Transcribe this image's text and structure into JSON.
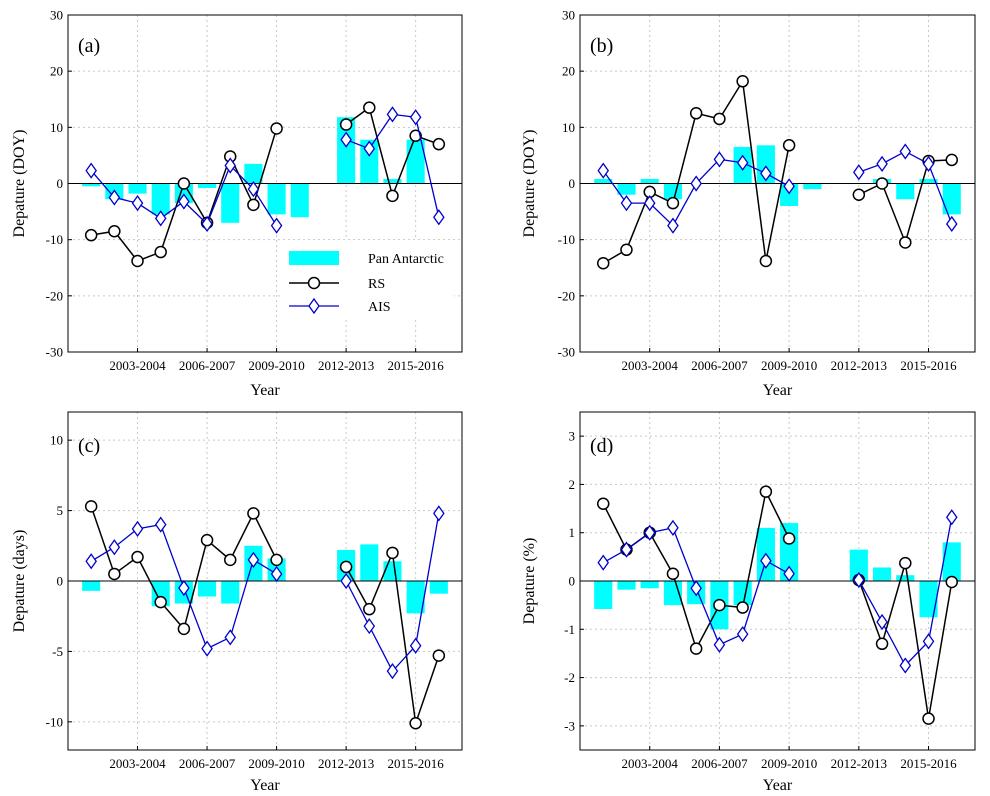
{
  "colors": {
    "bar": "#00ffff",
    "rs": "#000000",
    "ais": "#0000cd",
    "grid": "#c8c8c8"
  },
  "legend": {
    "entries": [
      "Pan Antarctic",
      "RS",
      "AIS"
    ]
  },
  "chart_data": [
    {
      "type": "bar",
      "panel_label": "(a)",
      "xlabel": "Year",
      "ylabel": "Depature (DOY)",
      "categories": [
        "2001-2002",
        "2002-2003",
        "2003-2004",
        "2004-2005",
        "2005-2006",
        "2006-2007",
        "2007-2008",
        "2008-2009",
        "2009-2010",
        "2010-2011",
        "2011-2012",
        "2012-2013",
        "2013-2014",
        "2014-2015",
        "2015-2016",
        "2016-2017"
      ],
      "xtick_labels": [
        "2003-2004",
        "2006-2007",
        "2009-2010",
        "2012-2013",
        "2015-2016"
      ],
      "ylim": [
        -30,
        30
      ],
      "yticks": [
        -30,
        -20,
        -10,
        0,
        10,
        20,
        30
      ],
      "series": [
        {
          "name": "Pan Antarctic",
          "kind": "bar",
          "values": [
            -0.5,
            -2.8,
            -1.8,
            -5.5,
            -3.5,
            -0.8,
            -7.0,
            3.5,
            -5.5,
            -6.0,
            null,
            11.8,
            7.8,
            0.8,
            7.8,
            null
          ]
        },
        {
          "name": "RS",
          "kind": "line",
          "values": [
            -9.2,
            -8.5,
            -13.8,
            -12.2,
            0.0,
            -7.0,
            4.8,
            -3.8,
            9.8,
            null,
            null,
            10.5,
            13.5,
            -2.2,
            8.5,
            7.0
          ]
        },
        {
          "name": "AIS",
          "kind": "line",
          "values": [
            2.3,
            -2.5,
            -3.5,
            -6.2,
            -3.2,
            -7.2,
            3.2,
            -1.0,
            -7.5,
            null,
            null,
            7.8,
            6.2,
            12.3,
            11.8,
            -6.0
          ]
        }
      ]
    },
    {
      "type": "bar",
      "panel_label": "(b)",
      "xlabel": "Year",
      "ylabel": "Depature (DOY)",
      "categories": [
        "2001-2002",
        "2002-2003",
        "2003-2004",
        "2004-2005",
        "2005-2006",
        "2006-2007",
        "2007-2008",
        "2008-2009",
        "2009-2010",
        "2010-2011",
        "2011-2012",
        "2012-2013",
        "2013-2014",
        "2014-2015",
        "2015-2016",
        "2016-2017"
      ],
      "xtick_labels": [
        "2003-2004",
        "2006-2007",
        "2009-2010",
        "2012-2013",
        "2015-2016"
      ],
      "ylim": [
        -30,
        30
      ],
      "yticks": [
        -30,
        -20,
        -10,
        0,
        10,
        20,
        30
      ],
      "series": [
        {
          "name": "Pan Antarctic",
          "kind": "bar",
          "values": [
            0.8,
            -2.0,
            0.8,
            -2.8,
            null,
            null,
            6.5,
            6.8,
            -4.0,
            -1.0,
            null,
            null,
            0.8,
            -2.8,
            0.8,
            -5.5
          ]
        },
        {
          "name": "RS",
          "kind": "line",
          "values": [
            -14.2,
            -11.8,
            -1.5,
            -3.5,
            12.5,
            11.5,
            18.2,
            -13.8,
            6.8,
            null,
            null,
            -2.0,
            0.0,
            -10.5,
            4.0,
            4.2
          ]
        },
        {
          "name": "AIS",
          "kind": "line",
          "values": [
            2.3,
            -3.5,
            -3.5,
            -7.5,
            0.0,
            4.3,
            3.7,
            1.8,
            -0.5,
            null,
            null,
            2.0,
            3.5,
            5.7,
            3.5,
            -7.2
          ]
        }
      ]
    },
    {
      "type": "bar",
      "panel_label": "(c)",
      "xlabel": "Year",
      "ylabel": "Depature (days)",
      "categories": [
        "2001-2002",
        "2002-2003",
        "2003-2004",
        "2004-2005",
        "2005-2006",
        "2006-2007",
        "2007-2008",
        "2008-2009",
        "2009-2010",
        "2010-2011",
        "2011-2012",
        "2012-2013",
        "2013-2014",
        "2014-2015",
        "2015-2016",
        "2016-2017"
      ],
      "xtick_labels": [
        "2003-2004",
        "2006-2007",
        "2009-2010",
        "2012-2013",
        "2015-2016"
      ],
      "ylim": [
        -12,
        12
      ],
      "yticks": [
        -10,
        -5,
        0,
        5,
        10
      ],
      "series": [
        {
          "name": "Pan Antarctic",
          "kind": "bar",
          "values": [
            -0.7,
            null,
            null,
            -1.8,
            -1.6,
            -1.1,
            -1.6,
            2.5,
            1.6,
            null,
            null,
            2.2,
            2.6,
            1.4,
            -2.3,
            -0.9
          ]
        },
        {
          "name": "RS",
          "kind": "line",
          "values": [
            5.3,
            0.5,
            1.7,
            -1.5,
            -3.4,
            2.9,
            1.5,
            4.8,
            1.5,
            null,
            null,
            1.0,
            -2.0,
            2.0,
            -10.1,
            -5.3
          ]
        },
        {
          "name": "AIS",
          "kind": "line",
          "values": [
            1.4,
            2.4,
            3.7,
            4.0,
            -0.5,
            -4.8,
            -4.0,
            1.5,
            0.5,
            null,
            null,
            0.0,
            -3.2,
            -6.4,
            -4.6,
            4.8
          ]
        }
      ]
    },
    {
      "type": "bar",
      "panel_label": "(d)",
      "xlabel": "Year",
      "ylabel": "Depature (%)",
      "categories": [
        "2001-2002",
        "2002-2003",
        "2003-2004",
        "2004-2005",
        "2005-2006",
        "2006-2007",
        "2007-2008",
        "2008-2009",
        "2009-2010",
        "2010-2011",
        "2011-2012",
        "2012-2013",
        "2013-2014",
        "2014-2015",
        "2015-2016",
        "2016-2017"
      ],
      "xtick_labels": [
        "2003-2004",
        "2006-2007",
        "2009-2010",
        "2012-2013",
        "2015-2016"
      ],
      "ylim": [
        -3.5,
        3.5
      ],
      "yticks": [
        -3,
        -2,
        -1,
        0,
        1,
        2,
        3
      ],
      "series": [
        {
          "name": "Pan Antarctic",
          "kind": "bar",
          "values": [
            -0.58,
            -0.18,
            -0.15,
            -0.5,
            -0.48,
            -1.0,
            -0.5,
            1.1,
            1.2,
            null,
            null,
            0.65,
            0.28,
            0.12,
            -0.75,
            0.8
          ]
        },
        {
          "name": "RS",
          "kind": "line",
          "values": [
            1.6,
            0.65,
            1.0,
            0.15,
            -1.4,
            -0.5,
            -0.55,
            1.85,
            0.88,
            null,
            null,
            0.02,
            -1.3,
            0.37,
            -2.85,
            -0.02
          ]
        },
        {
          "name": "AIS",
          "kind": "line",
          "values": [
            0.38,
            0.65,
            1.0,
            1.1,
            -0.15,
            -1.32,
            -1.1,
            0.42,
            0.15,
            null,
            null,
            0.02,
            -0.85,
            -1.75,
            -1.25,
            1.32
          ]
        }
      ]
    }
  ]
}
